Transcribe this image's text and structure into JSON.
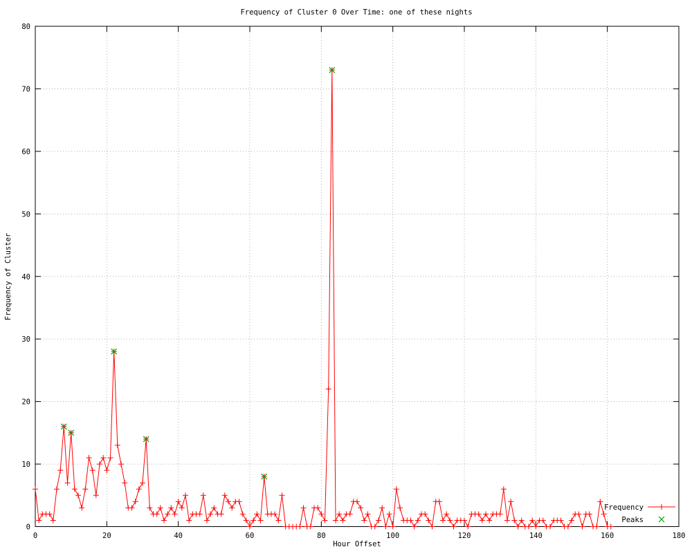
{
  "chart_data": {
    "type": "line",
    "title": "Frequency of Cluster 0 Over Time: one of these nights",
    "xlabel": "Hour Offset",
    "ylabel": "Frequency of Cluster",
    "xlim": [
      0,
      180
    ],
    "ylim": [
      0,
      80
    ],
    "xticks": [
      0,
      20,
      40,
      60,
      80,
      100,
      120,
      140,
      160,
      180
    ],
    "yticks": [
      0,
      10,
      20,
      30,
      40,
      50,
      60,
      70,
      80
    ],
    "grid": true,
    "legend_position": "bottom-right-inside",
    "series": [
      {
        "name": "Frequency",
        "color": "#ff0000",
        "marker": "plus",
        "x_start": 0,
        "x_step": 1,
        "values": [
          6,
          1,
          2,
          2,
          2,
          1,
          6,
          9,
          16,
          7,
          15,
          6,
          5,
          3,
          6,
          11,
          9,
          5,
          10,
          11,
          9,
          11,
          28,
          13,
          10,
          7,
          3,
          3,
          4,
          6,
          7,
          14,
          3,
          2,
          2,
          3,
          1,
          2,
          3,
          2,
          4,
          3,
          5,
          1,
          2,
          2,
          2,
          5,
          1,
          2,
          3,
          2,
          2,
          5,
          4,
          3,
          4,
          4,
          2,
          1,
          0,
          1,
          2,
          1,
          8,
          2,
          2,
          2,
          1,
          5,
          0,
          0,
          0,
          0,
          0,
          3,
          0,
          0,
          3,
          3,
          2,
          1,
          22,
          73,
          1,
          2,
          1,
          2,
          2,
          4,
          4,
          3,
          1,
          2,
          0,
          0,
          1,
          3,
          0,
          2,
          0,
          6,
          3,
          1,
          1,
          1,
          0,
          1,
          2,
          2,
          1,
          0,
          4,
          4,
          1,
          2,
          1,
          0,
          1,
          1,
          1,
          0,
          2,
          2,
          2,
          1,
          2,
          1,
          2,
          2,
          2,
          6,
          1,
          4,
          1,
          0,
          1,
          0,
          0,
          1,
          0,
          1,
          1,
          0,
          0,
          1,
          1,
          1,
          0,
          0,
          1,
          2,
          2,
          0,
          2,
          2,
          0,
          0,
          4,
          2,
          0,
          0
        ]
      },
      {
        "name": "Peaks",
        "color": "#00a000",
        "marker": "x",
        "points": [
          [
            8,
            16
          ],
          [
            10,
            15
          ],
          [
            22,
            28
          ],
          [
            31,
            14
          ],
          [
            64,
            8
          ],
          [
            83,
            73
          ]
        ]
      }
    ],
    "colors": {
      "axis": "#000000",
      "grid": "#b0b0b0",
      "background": "#ffffff"
    }
  }
}
